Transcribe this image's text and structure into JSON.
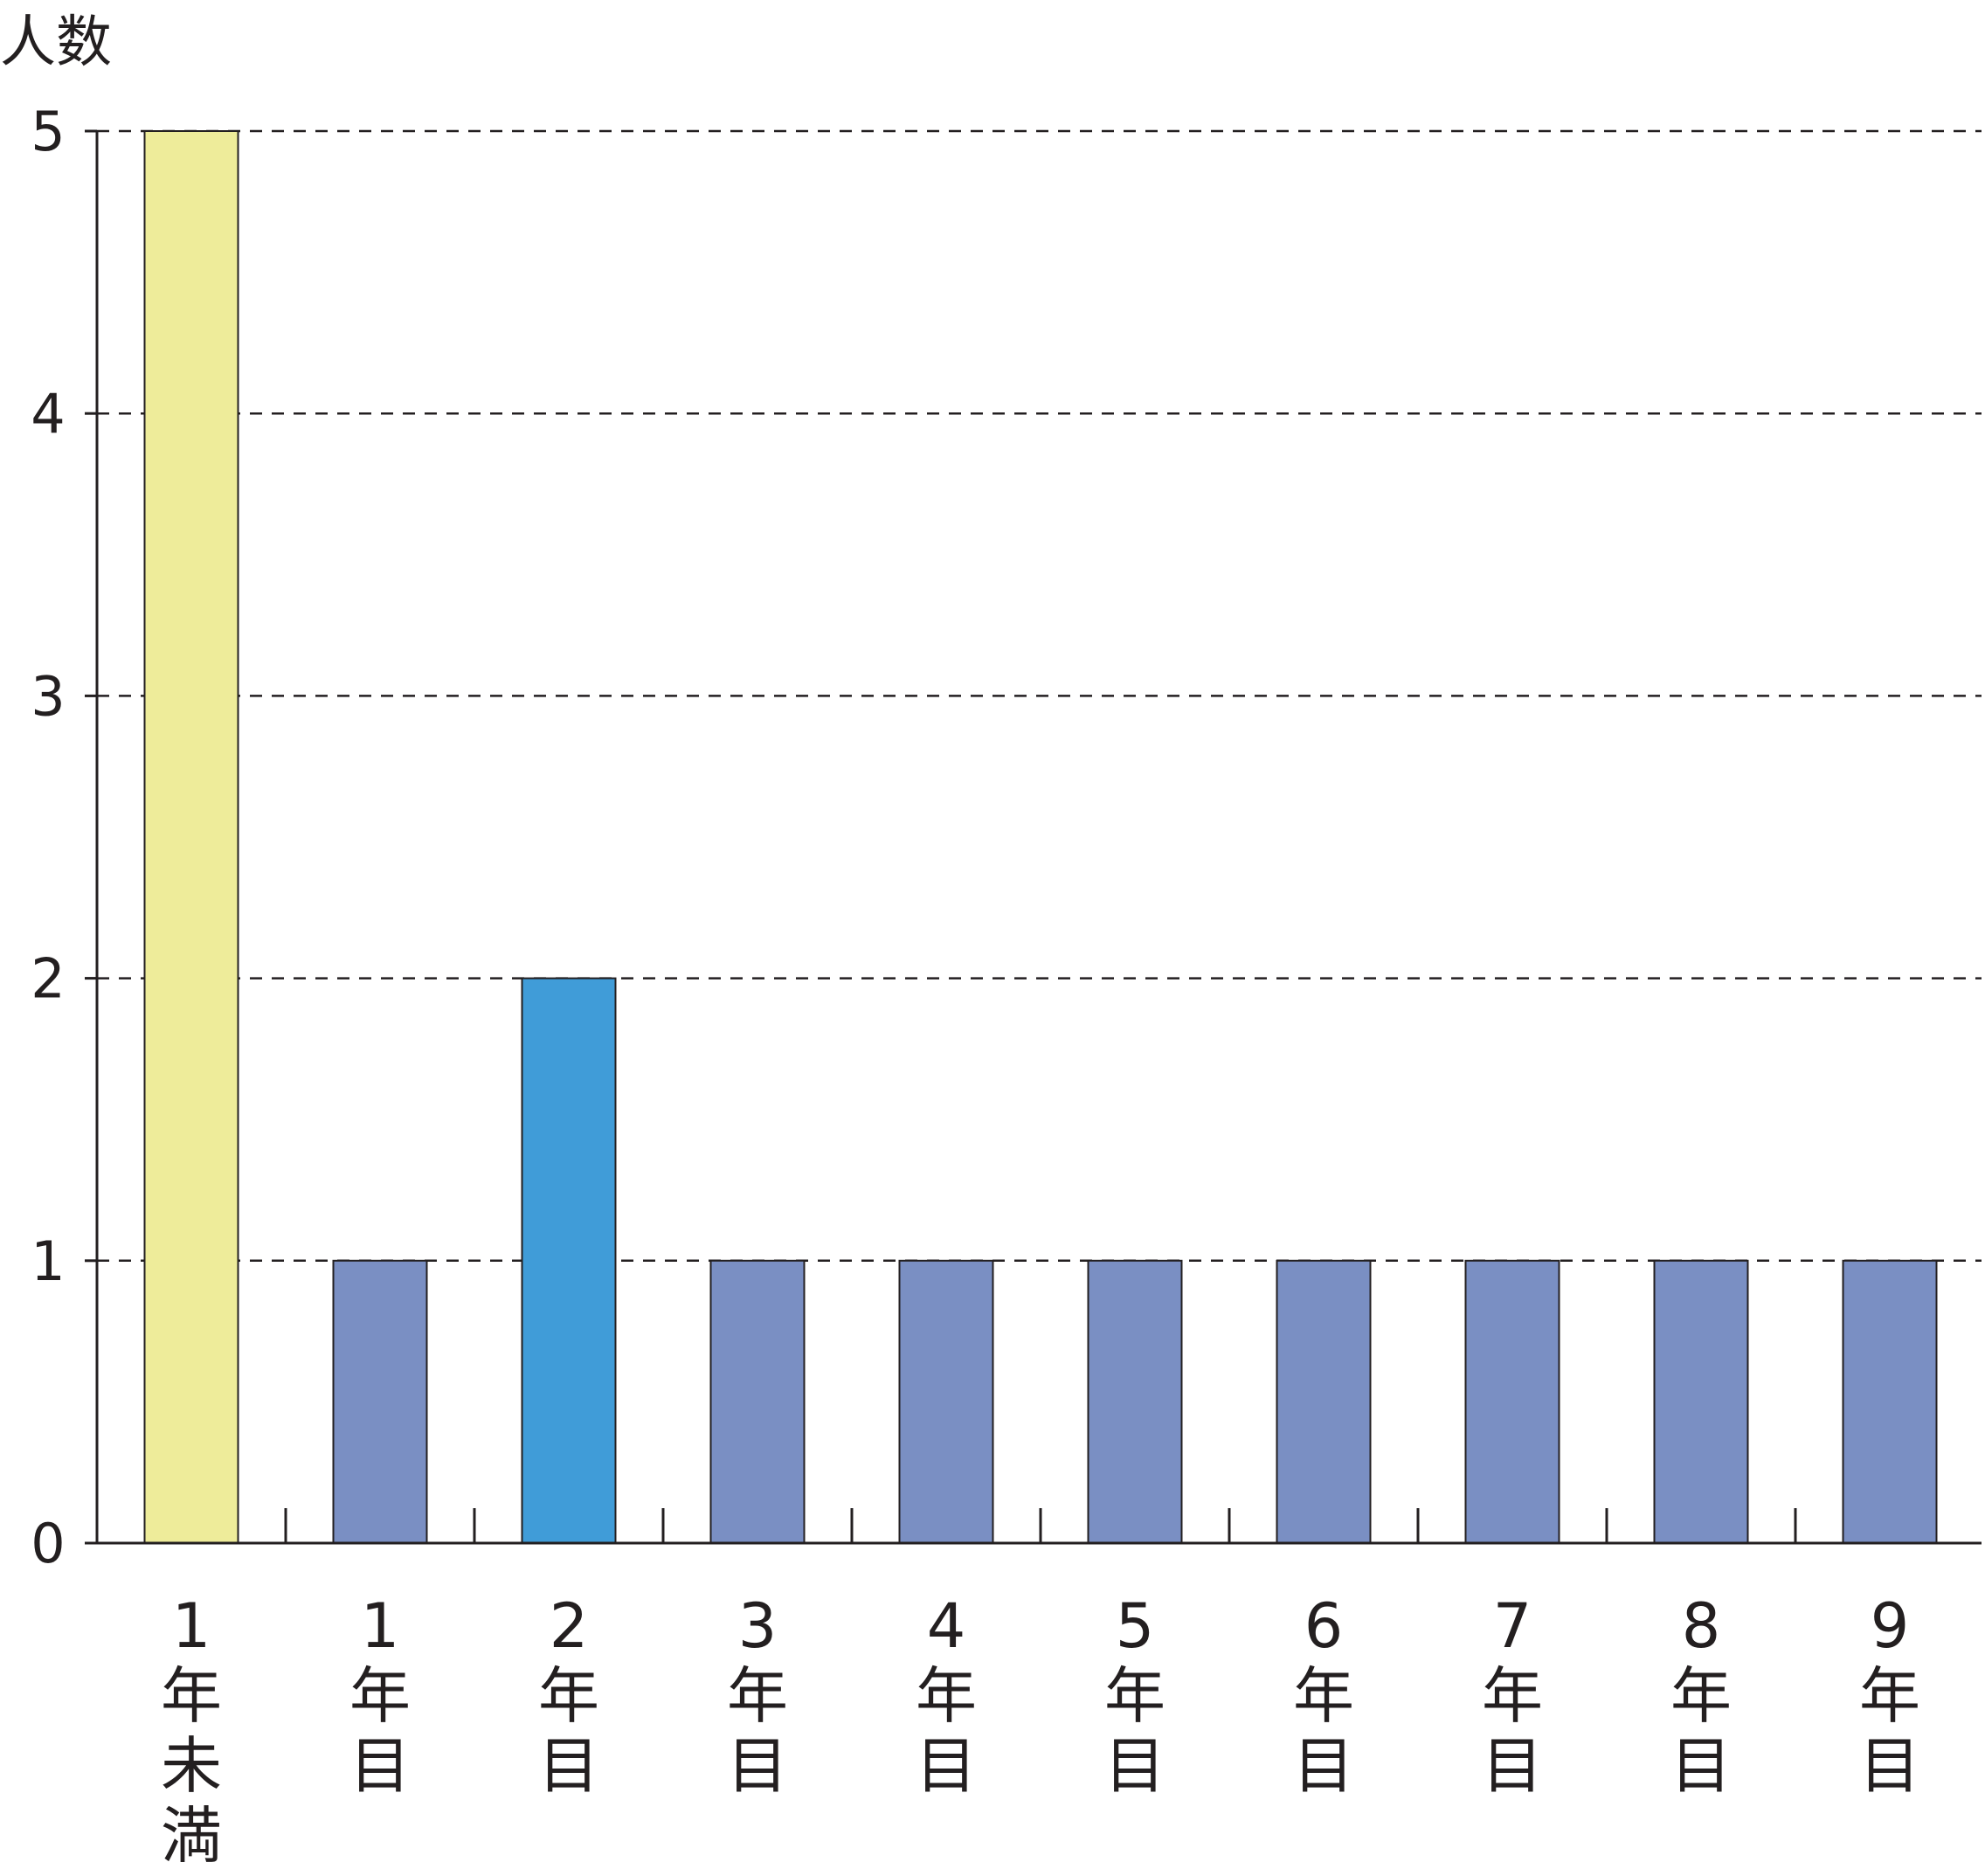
{
  "chart_data": {
    "type": "bar",
    "title": "",
    "xlabel": "",
    "ylabel": "人数",
    "ylim": [
      0,
      5
    ],
    "yticks": [
      0,
      1,
      2,
      3,
      4,
      5
    ],
    "grid": "horizontal dashed",
    "legend": "none",
    "categories": [
      "1年未満",
      "1年目",
      "2年目",
      "3年目",
      "4年目",
      "5年目",
      "6年目",
      "7年目",
      "8年目",
      "9年目"
    ],
    "category_lines": [
      [
        "1",
        "年",
        "未",
        "満"
      ],
      [
        "1",
        "年",
        "目"
      ],
      [
        "2",
        "年",
        "目"
      ],
      [
        "3",
        "年",
        "目"
      ],
      [
        "4",
        "年",
        "目"
      ],
      [
        "5",
        "年",
        "目"
      ],
      [
        "6",
        "年",
        "目"
      ],
      [
        "7",
        "年",
        "目"
      ],
      [
        "8",
        "年",
        "目"
      ],
      [
        "9",
        "年",
        "目"
      ]
    ],
    "values": [
      5,
      1,
      2,
      1,
      1,
      1,
      1,
      1,
      1,
      1
    ],
    "colors": [
      "#eeec9a",
      "#7a8fc3",
      "#409cd8",
      "#7a8fc3",
      "#7a8fc3",
      "#7a8fc3",
      "#7a8fc3",
      "#7a8fc3",
      "#7a8fc3",
      "#7a8fc3"
    ]
  }
}
